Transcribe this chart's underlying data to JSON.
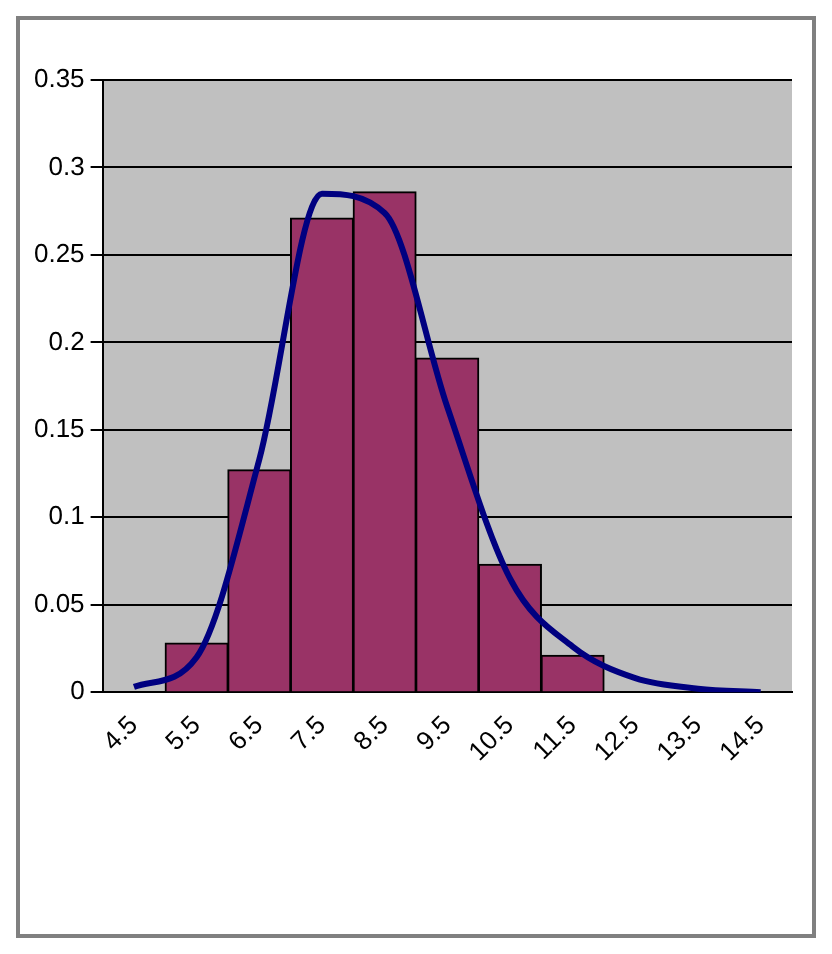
{
  "chart_data": {
    "type": "bar",
    "categories": [
      "4.5",
      "5.5",
      "6.5",
      "7.5",
      "8.5",
      "9.5",
      "10.5",
      "11.5",
      "12.5",
      "13.5",
      "14.5"
    ],
    "series": [
      {
        "color": "#993366",
        "values": [
          0,
          0.028,
          0.127,
          0.271,
          0.286,
          0.191,
          0.073,
          0.021,
          0,
          0,
          0
        ]
      },
      {
        "type": "line",
        "color": "#000080",
        "values": [
          0.003,
          0.02,
          0.133,
          0.285,
          0.274,
          0.163,
          0.065,
          0.026,
          0.008,
          0.002,
          0
        ]
      }
    ],
    "ylim": [
      0,
      0.35
    ],
    "yticks": [
      0,
      0.05,
      0.1,
      0.15,
      0.2,
      0.25,
      0.3,
      0.35
    ],
    "grid": "y",
    "legend": false
  }
}
